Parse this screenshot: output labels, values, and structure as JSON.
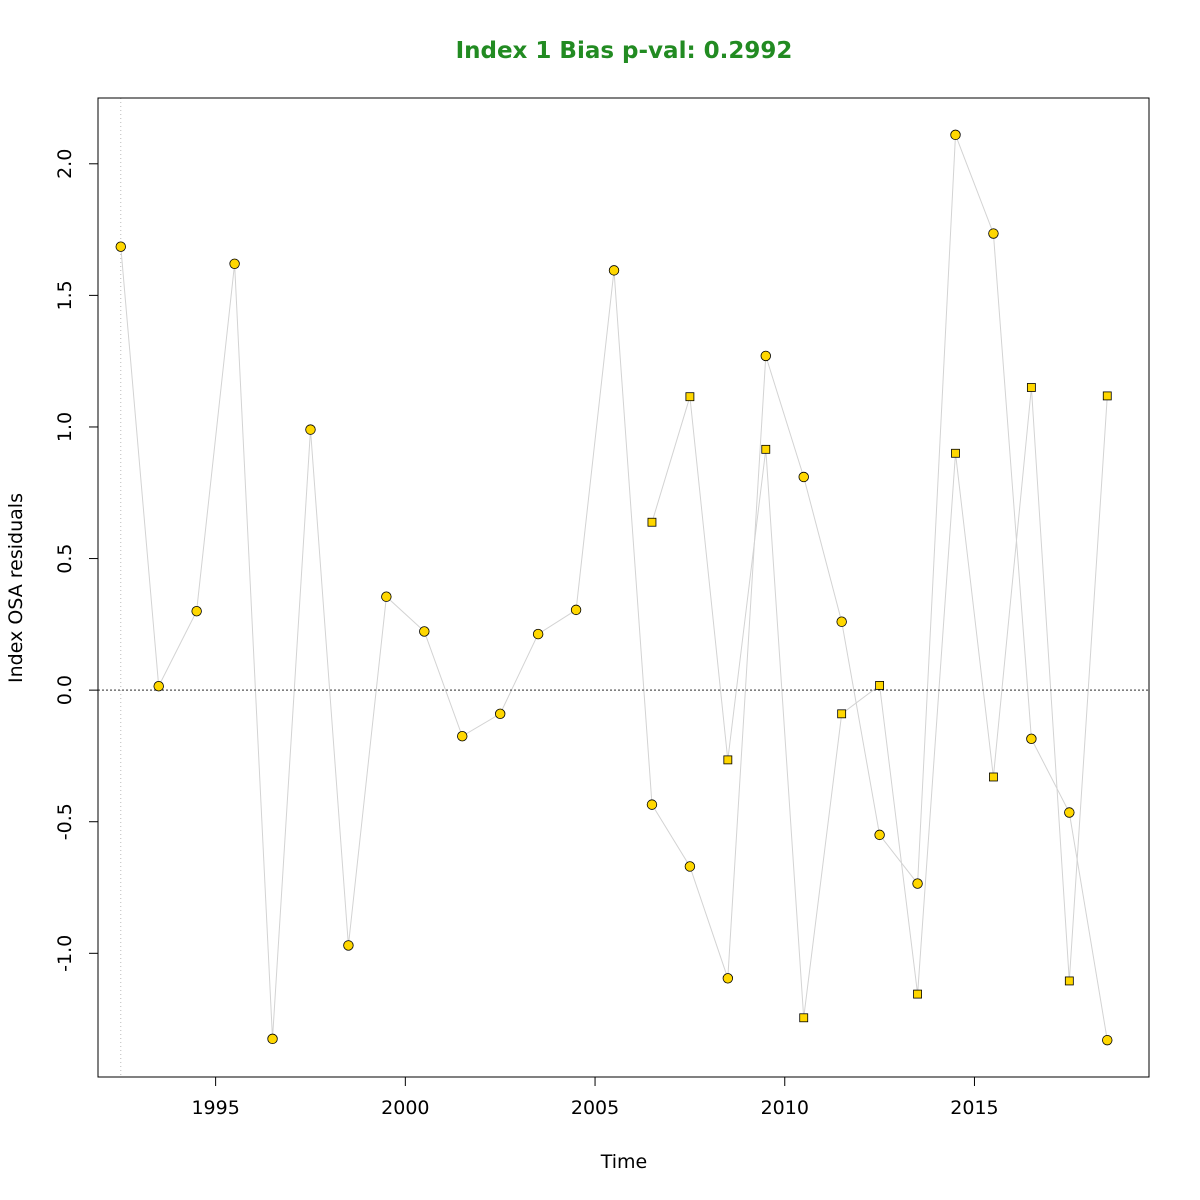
{
  "chart_data": {
    "type": "scatter",
    "title": "Index 1 Bias p-val: 0.2992",
    "title_color": "#228B22",
    "xlabel": "Time",
    "ylabel": "Index OSA residuals",
    "xlim": [
      1991.9,
      2019.6
    ],
    "ylim": [
      -1.47,
      2.25
    ],
    "x_ticks": [
      {
        "value": 1995,
        "label": "1995"
      },
      {
        "value": 2000,
        "label": "2000"
      },
      {
        "value": 2005,
        "label": "2005"
      },
      {
        "value": 2010,
        "label": "2010"
      },
      {
        "value": 2015,
        "label": "2015"
      }
    ],
    "y_ticks": [
      {
        "value": -1.0,
        "label": "-1.0"
      },
      {
        "value": -0.5,
        "label": "-0.5"
      },
      {
        "value": 0.0,
        "label": "0.0"
      },
      {
        "value": 0.5,
        "label": "0.5"
      },
      {
        "value": 1.0,
        "label": "1.0"
      },
      {
        "value": 1.5,
        "label": "1.5"
      },
      {
        "value": 2.0,
        "label": "2.0"
      }
    ],
    "reference_line_y": 0,
    "reference_line_x": 1992.5,
    "colors": {
      "point_fill": "#FFD700",
      "point_stroke": "#000000",
      "connector": "#D3D3D3",
      "reference": "#555555",
      "axis": "#000000"
    },
    "series": [
      {
        "marker": "circle",
        "x": [
          1992.5,
          1993.5,
          1994.5,
          1995.5,
          1996.5,
          1997.5,
          1998.5,
          1999.5,
          2000.5,
          2001.5,
          2002.5,
          2003.5,
          2004.5,
          2005.5,
          2006.5,
          2007.5,
          2008.5,
          2009.5,
          2010.5,
          2011.5,
          2012.5,
          2013.5,
          2014.5,
          2015.5,
          2016.5,
          2017.5,
          2018.5
        ],
        "y": [
          1.685,
          0.015,
          0.3,
          1.62,
          -1.325,
          0.99,
          -0.97,
          0.355,
          0.223,
          -0.175,
          -0.09,
          0.213,
          0.305,
          1.595,
          -0.435,
          -0.67,
          -1.095,
          1.27,
          0.81,
          0.26,
          -0.55,
          -0.735,
          2.11,
          1.735,
          -0.185,
          -0.465,
          -1.33
        ]
      },
      {
        "marker": "square",
        "x": [
          2006.5,
          2007.5,
          2008.5,
          2009.5,
          2010.5,
          2011.5,
          2012.5,
          2013.5,
          2014.5,
          2015.5,
          2016.5,
          2017.5,
          2018.5
        ],
        "y": [
          0.638,
          1.115,
          -0.265,
          0.915,
          -1.245,
          -0.09,
          0.018,
          -1.155,
          0.9,
          -0.33,
          1.15,
          -1.105,
          1.118
        ]
      }
    ]
  }
}
